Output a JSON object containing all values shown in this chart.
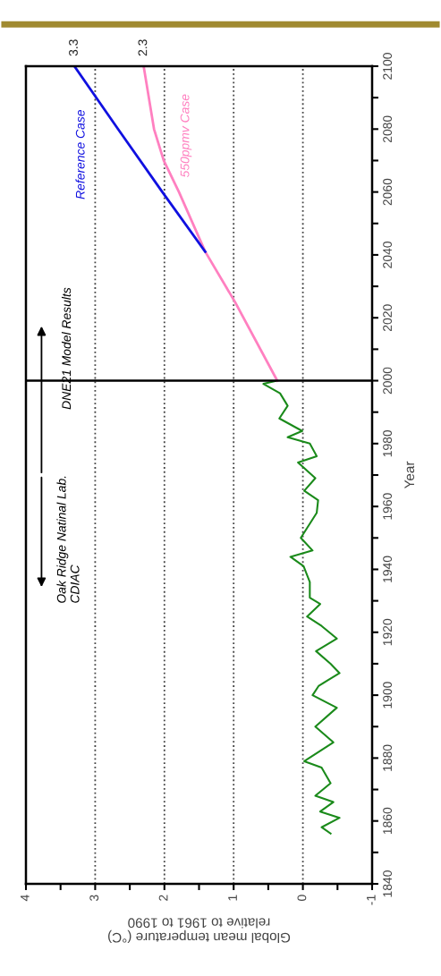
{
  "chart_data": {
    "type": "line",
    "ylabel": "Year",
    "xlabel": "Global mean temperature (°C)\nrelative to 1961 to 1990",
    "ylim": [
      1840,
      2100
    ],
    "yticks": [
      1840,
      {
        "value": 1850,
        "label": null
      },
      1860,
      {
        "value": 1870,
        "label": null
      },
      1880,
      {
        "value": 1890,
        "label": null
      },
      1900,
      {
        "value": 1910,
        "label": null
      },
      1920,
      {
        "value": 1930,
        "label": null
      },
      1940,
      {
        "value": 1950,
        "label": null
      },
      1960,
      {
        "value": 1970,
        "label": null
      },
      1980,
      {
        "value": 1990,
        "label": null
      },
      2000,
      {
        "value": 2010,
        "label": null
      },
      2020,
      {
        "value": 2030,
        "label": null
      },
      2040,
      {
        "value": 2050,
        "label": null
      },
      2060,
      {
        "value": 2070,
        "label": null
      },
      2080,
      {
        "value": 2090,
        "label": null
      },
      2100
    ],
    "xlim": [
      4,
      -1
    ],
    "xticks": [
      -1,
      {
        "value": -0.5,
        "label": null
      },
      0,
      {
        "value": 0.5,
        "label": null
      },
      1,
      {
        "value": 1.5,
        "label": null
      },
      2,
      {
        "value": 2.5,
        "label": null
      },
      3,
      {
        "value": 3.5,
        "label": null
      },
      4
    ],
    "grid": "x",
    "line_style": "solid",
    "marker": "none",
    "series": [
      {
        "color": "#1a8a1a",
        "values": [
          1856,
          1858,
          1861,
          1863,
          1866,
          1868,
          1872,
          1877,
          1879,
          1885,
          1890,
          1896,
          1900,
          1903,
          1907,
          1910,
          1914,
          1918,
          1922,
          1925,
          1929,
          1931,
          1936,
          1941,
          1944,
          1946,
          1950,
          1958,
          1962,
          1965,
          1969,
          1974,
          1976,
          1980,
          1982,
          1984,
          1988,
          1992,
          1996,
          1999,
          2000
        ],
        "x": [
          -0.4,
          -0.27,
          -0.53,
          -0.25,
          -0.44,
          -0.18,
          -0.4,
          -0.27,
          -0.02,
          -0.44,
          -0.18,
          -0.49,
          -0.14,
          -0.23,
          -0.53,
          -0.4,
          -0.19,
          -0.49,
          -0.27,
          -0.06,
          -0.25,
          -0.1,
          -0.1,
          -0.01,
          0.18,
          -0.14,
          0.03,
          -0.2,
          -0.22,
          -0.02,
          -0.18,
          0.07,
          -0.2,
          -0.1,
          0.22,
          0.01,
          0.34,
          0.22,
          0.33,
          0.57,
          0.37
        ]
      },
      {
        "color": "#ff80c0",
        "values": [
          2000,
          2025,
          2041,
          2060,
          2070,
          2080,
          2100
        ],
        "x": [
          0.37,
          0.98,
          1.41,
          1.79,
          2.01,
          2.15,
          2.3
        ]
      },
      {
        "color": "#1010e0",
        "values": [
          2041,
          2060,
          2080,
          2100
        ],
        "x": [
          1.41,
          2.03,
          2.67,
          3.3
        ]
      }
    ],
    "ref_lines": [
      {
        "axis": "y",
        "value": 2000,
        "color": "#000000",
        "line_style": "solid"
      }
    ],
    "annotations": [
      {
        "text": "3.3",
        "x": 3.3,
        "y": 2100
      },
      {
        "text": "2.3",
        "x": 2.3,
        "y": 2100
      },
      "Reference Case",
      "550ppmv Case",
      "DNE21 Model Results",
      "Oak Ridge Natinal Lab.\nCDIAC"
    ]
  }
}
